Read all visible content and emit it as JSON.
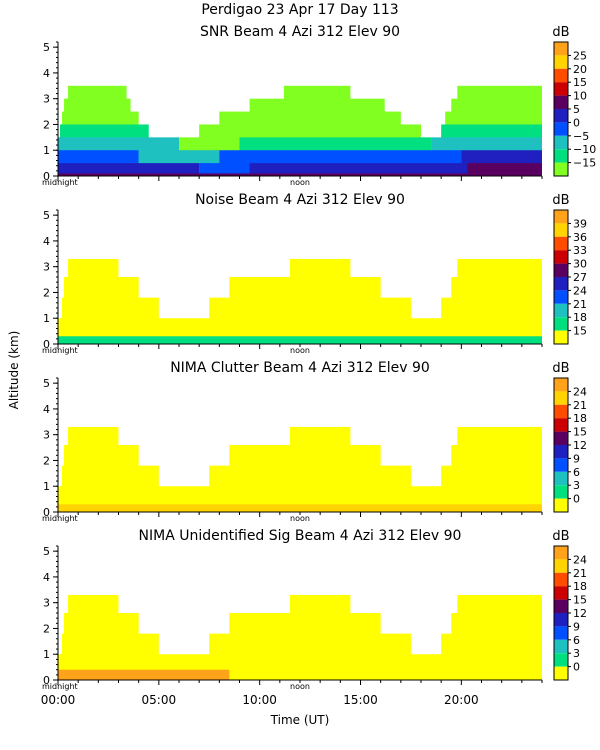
{
  "header": {
    "title": "Perdigao  23 Apr 17 Day 113"
  },
  "colors": {
    "background": "#ffffff",
    "axis": "#000000"
  },
  "figure": {
    "ylabel": "Altitude (km)",
    "xlabel": "Time (UT)"
  },
  "chart_data": [
    {
      "type": "heatmap",
      "title": "SNR Beam 4 Azi 312 Elev 90",
      "yticks": [
        "0",
        "1",
        "2",
        "3",
        "4",
        "5"
      ],
      "ylim": [
        0,
        5.2
      ],
      "xlim": [
        0,
        24
      ],
      "day_marks": [
        "midnight",
        "noon"
      ],
      "colorbar": {
        "unit": "dB",
        "ticks": [
          "25",
          "20",
          "15",
          "10",
          "5",
          "0",
          "−5",
          "−10",
          "−15"
        ],
        "colors": [
          "#ffa31a",
          "#ffd400",
          "#ff4d00",
          "#cc0000",
          "#5a0060",
          "#2020c0",
          "#0050ff",
          "#1fc0c0",
          "#00e080",
          "#80ff20"
        ]
      },
      "rows": [
        {
          "alt": 3.5,
          "segments": [
            [
              0.5,
              3.4,
              "#80ff20"
            ],
            [
              11.2,
              14.5,
              "#80ff20"
            ],
            [
              19.8,
              24,
              "#80ff20"
            ]
          ]
        },
        {
          "alt": 3.0,
          "segments": [
            [
              0.3,
              3.6,
              "#80ff20"
            ],
            [
              9.5,
              16.2,
              "#80ff20"
            ],
            [
              19.5,
              24,
              "#80ff20"
            ]
          ]
        },
        {
          "alt": 2.5,
          "segments": [
            [
              0.2,
              4.0,
              "#80ff20"
            ],
            [
              8.0,
              17.0,
              "#80ff20"
            ],
            [
              19.2,
              24,
              "#80ff20"
            ]
          ]
        },
        {
          "alt": 2.0,
          "segments": [
            [
              0.1,
              4.5,
              "#00e080"
            ],
            [
              7.0,
              18.0,
              "#80ff20"
            ],
            [
              19.0,
              24,
              "#00e080"
            ]
          ]
        },
        {
          "alt": 1.5,
          "segments": [
            [
              0.0,
              6.0,
              "#1fc0c0"
            ],
            [
              6.0,
              9.0,
              "#80ff20"
            ],
            [
              9.0,
              18.5,
              "#00e080"
            ],
            [
              18.5,
              24,
              "#1fc0c0"
            ]
          ]
        },
        {
          "alt": 1.0,
          "segments": [
            [
              0.0,
              4.0,
              "#0050ff"
            ],
            [
              4.0,
              8.0,
              "#1fc0c0"
            ],
            [
              8.0,
              20.0,
              "#0050ff"
            ],
            [
              20.0,
              24,
              "#2020c0"
            ]
          ]
        },
        {
          "alt": 0.5,
          "segments": [
            [
              0.0,
              7.0,
              "#2020c0"
            ],
            [
              7.0,
              9.5,
              "#0050ff"
            ],
            [
              9.5,
              20.3,
              "#2020c0"
            ],
            [
              20.3,
              24,
              "#5a0060"
            ]
          ]
        },
        {
          "alt": 0.1,
          "segments": [
            [
              0.0,
              24,
              "#5a0060"
            ]
          ]
        }
      ]
    },
    {
      "type": "heatmap",
      "title": "Noise Beam 4 Azi 312 Elev 90",
      "yticks": [
        "0",
        "1",
        "2",
        "3",
        "4",
        "5"
      ],
      "ylim": [
        0,
        5.2
      ],
      "xlim": [
        0,
        24
      ],
      "day_marks": [
        "midnight",
        "noon"
      ],
      "colorbar": {
        "unit": "dB",
        "ticks": [
          "39",
          "36",
          "33",
          "30",
          "27",
          "24",
          "21",
          "18",
          "15"
        ],
        "colors": [
          "#ffa31a",
          "#ffd400",
          "#ff4d00",
          "#cc0000",
          "#5a0060",
          "#2020c0",
          "#0050ff",
          "#1fc0c0",
          "#00e080",
          "#ffff00"
        ]
      },
      "rows": [
        {
          "alt": 3.3,
          "segments": [
            [
              0.5,
              3.0,
              "#ffff00"
            ],
            [
              11.5,
              14.5,
              "#ffff00"
            ],
            [
              19.8,
              24,
              "#ffff00"
            ]
          ]
        },
        {
          "alt": 2.6,
          "segments": [
            [
              0.3,
              4.0,
              "#ffff00"
            ],
            [
              8.5,
              16.0,
              "#ffff00"
            ],
            [
              19.5,
              24,
              "#ffff00"
            ]
          ]
        },
        {
          "alt": 1.8,
          "segments": [
            [
              0.2,
              5.0,
              "#ffff00"
            ],
            [
              7.5,
              17.5,
              "#ffff00"
            ],
            [
              19.0,
              24,
              "#ffff00"
            ]
          ]
        },
        {
          "alt": 1.0,
          "segments": [
            [
              0.0,
              24,
              "#ffff00"
            ]
          ]
        },
        {
          "alt": 0.3,
          "segments": [
            [
              0.0,
              24,
              "#00e080"
            ]
          ]
        }
      ]
    },
    {
      "type": "heatmap",
      "title": "NIMA Clutter Beam 4 Azi 312 Elev 90",
      "yticks": [
        "0",
        "1",
        "2",
        "3",
        "4",
        "5"
      ],
      "ylim": [
        0,
        5.2
      ],
      "xlim": [
        0,
        24
      ],
      "day_marks": [
        "midnight",
        "noon"
      ],
      "colorbar": {
        "unit": "dB",
        "ticks": [
          "24",
          "21",
          "18",
          "15",
          "12",
          "9",
          "6",
          "3",
          "0"
        ],
        "colors": [
          "#ffa31a",
          "#ffd400",
          "#ff4d00",
          "#cc0000",
          "#5a0060",
          "#2020c0",
          "#0050ff",
          "#1fc0c0",
          "#00e080",
          "#ffff00"
        ]
      },
      "rows": [
        {
          "alt": 3.3,
          "segments": [
            [
              0.5,
              3.0,
              "#ffff00"
            ],
            [
              11.5,
              14.5,
              "#ffff00"
            ],
            [
              19.8,
              24,
              "#ffff00"
            ]
          ]
        },
        {
          "alt": 2.6,
          "segments": [
            [
              0.3,
              4.0,
              "#ffff00"
            ],
            [
              8.5,
              16.0,
              "#ffff00"
            ],
            [
              19.5,
              24,
              "#ffff00"
            ]
          ]
        },
        {
          "alt": 1.8,
          "segments": [
            [
              0.2,
              5.0,
              "#ffff00"
            ],
            [
              7.5,
              17.5,
              "#ffff00"
            ],
            [
              19.0,
              24,
              "#ffff00"
            ]
          ]
        },
        {
          "alt": 1.0,
          "segments": [
            [
              0.0,
              24,
              "#ffff00"
            ]
          ]
        },
        {
          "alt": 0.3,
          "segments": [
            [
              0.0,
              24,
              "#ffd400"
            ]
          ]
        }
      ]
    },
    {
      "type": "heatmap",
      "title": "NIMA Unidentified Sig Beam 4 Azi 312 Elev 90",
      "yticks": [
        "0",
        "1",
        "2",
        "3",
        "4",
        "5"
      ],
      "ylim": [
        0,
        5.2
      ],
      "xlim": [
        0,
        24
      ],
      "xticks": [
        "00:00",
        "05:00",
        "10:00",
        "15:00",
        "20:00"
      ],
      "day_marks": [
        "midnight",
        "noon"
      ],
      "colorbar": {
        "unit": "dB",
        "ticks": [
          "24",
          "21",
          "18",
          "15",
          "12",
          "9",
          "6",
          "3",
          "0"
        ],
        "colors": [
          "#ffa31a",
          "#ffd400",
          "#ff4d00",
          "#cc0000",
          "#5a0060",
          "#2020c0",
          "#0050ff",
          "#1fc0c0",
          "#00e080",
          "#ffff00"
        ]
      },
      "rows": [
        {
          "alt": 3.3,
          "segments": [
            [
              0.5,
              3.0,
              "#ffff00"
            ],
            [
              11.5,
              14.5,
              "#ffff00"
            ],
            [
              19.8,
              24,
              "#ffff00"
            ]
          ]
        },
        {
          "alt": 2.6,
          "segments": [
            [
              0.3,
              4.0,
              "#ffff00"
            ],
            [
              8.5,
              16.0,
              "#ffff00"
            ],
            [
              19.5,
              24,
              "#ffff00"
            ]
          ]
        },
        {
          "alt": 1.8,
          "segments": [
            [
              0.2,
              5.0,
              "#ffff00"
            ],
            [
              7.5,
              17.5,
              "#ffff00"
            ],
            [
              19.0,
              24,
              "#ffff00"
            ]
          ]
        },
        {
          "alt": 1.0,
          "segments": [
            [
              0.0,
              24,
              "#ffff00"
            ]
          ]
        },
        {
          "alt": 0.4,
          "segments": [
            [
              0.0,
              8.5,
              "#ffa31a"
            ],
            [
              8.5,
              24,
              "#ffff00"
            ]
          ]
        }
      ]
    }
  ]
}
